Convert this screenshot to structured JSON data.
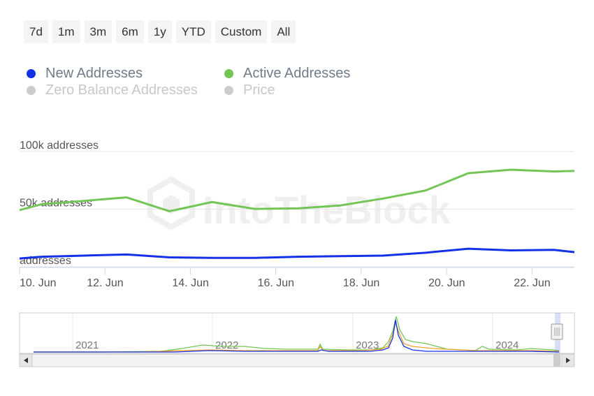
{
  "range_buttons": [
    "7d",
    "1m",
    "3m",
    "6m",
    "1y",
    "YTD",
    "Custom",
    "All"
  ],
  "legend": [
    {
      "label": "New Addresses",
      "color": "#1431e8",
      "enabled": true
    },
    {
      "label": "Active Addresses",
      "color": "#74c557",
      "enabled": true
    },
    {
      "label": "Zero Balance Addresses",
      "color": "#cccccc",
      "enabled": false
    },
    {
      "label": "Price",
      "color": "#cccccc",
      "enabled": false
    }
  ],
  "watermark": "IntoTheBlock",
  "navigator": {
    "year_labels": [
      "2021",
      "2022",
      "2023",
      "2024"
    ]
  },
  "chart_data": {
    "type": "line",
    "x_tick_labels": [
      "10. Jun",
      "12. Jun",
      "14. Jun",
      "16. Jun",
      "18. Jun",
      "20. Jun",
      "22. Jun"
    ],
    "y_tick_labels": [
      "100k addresses",
      "50k addresses",
      "addresses"
    ],
    "ylim": [
      0,
      100000
    ],
    "grid": true,
    "legend_position": "top-left",
    "x": [
      "9. Jun",
      "10. Jun",
      "11. Jun",
      "12. Jun",
      "13. Jun",
      "14. Jun",
      "15. Jun",
      "16. Jun",
      "17. Jun",
      "18. Jun",
      "19. Jun",
      "20. Jun",
      "21. Jun",
      "22. Jun",
      "23. Jun"
    ],
    "series": [
      {
        "name": "Active Addresses",
        "color": "#74c557",
        "values": [
          48000,
          53000,
          56000,
          59000,
          47000,
          55000,
          49000,
          49500,
          52000,
          58000,
          65000,
          80000,
          83000,
          81500,
          82000
        ]
      },
      {
        "name": "New Addresses",
        "color": "#1431e8",
        "values": [
          6000,
          7500,
          8500,
          9500,
          7000,
          6500,
          6500,
          7500,
          8000,
          8500,
          11000,
          14500,
          13000,
          13500,
          11500
        ]
      }
    ]
  }
}
